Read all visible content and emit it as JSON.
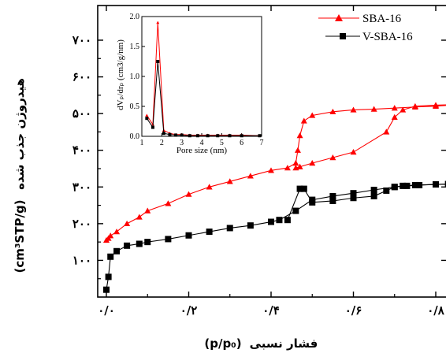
{
  "chart_data": {
    "type": "line",
    "xlabel_persian": "فشار نسبی",
    "xlabel_unit": "(p/p₀)",
    "ylabel_persian": "هیدروژن جذب شده",
    "ylabel_unit": "(cm³STP/g)",
    "xlim": [
      0.0,
      0.86
    ],
    "ylim": [
      0,
      780
    ],
    "x_ticks": [
      0.0,
      0.2,
      0.4,
      0.6,
      0.8
    ],
    "x_tick_labels": [
      "۰/۰",
      "۰/۲",
      "۰/۴",
      "۰/۶",
      "۰/۸"
    ],
    "y_ticks": [
      100,
      200,
      300,
      400,
      500,
      600,
      700
    ],
    "y_tick_labels": [
      "۱۰۰",
      "۲۰۰",
      "۳۰۰",
      "۴۰۰",
      "۵۰۰",
      "۶۰۰",
      "۷۰۰"
    ],
    "legend_position": "top-right",
    "series": [
      {
        "name": "SBA-16",
        "color": "#ff0000",
        "marker": "triangle",
        "adsorption": {
          "x": [
            0.0,
            0.005,
            0.01,
            0.025,
            0.05,
            0.08,
            0.1,
            0.15,
            0.2,
            0.25,
            0.3,
            0.35,
            0.4,
            0.44,
            0.46,
            0.465,
            0.47,
            0.48,
            0.5,
            0.55,
            0.6,
            0.65,
            0.7,
            0.75,
            0.8,
            0.86
          ],
          "y": [
            155,
            160,
            167,
            178,
            200,
            218,
            235,
            255,
            280,
            300,
            315,
            330,
            345,
            352,
            365,
            400,
            440,
            480,
            495,
            505,
            510,
            512,
            515,
            518,
            520,
            525
          ]
        },
        "desorption": {
          "x": [
            0.86,
            0.8,
            0.75,
            0.72,
            0.7,
            0.68,
            0.6,
            0.55,
            0.5,
            0.47,
            0.46
          ],
          "y": [
            525,
            523,
            520,
            510,
            490,
            450,
            395,
            380,
            365,
            355,
            352
          ]
        }
      },
      {
        "name": "V-SBA-16",
        "color": "#000000",
        "marker": "square",
        "adsorption": {
          "x": [
            0.0,
            0.005,
            0.01,
            0.025,
            0.05,
            0.08,
            0.1,
            0.15,
            0.2,
            0.25,
            0.3,
            0.35,
            0.4,
            0.42,
            0.46,
            0.5,
            0.55,
            0.6,
            0.65,
            0.7,
            0.73,
            0.76,
            0.8,
            0.83,
            0.86
          ],
          "y": [
            20,
            55,
            110,
            125,
            140,
            145,
            150,
            158,
            168,
            178,
            188,
            195,
            205,
            210,
            235,
            265,
            275,
            283,
            292,
            300,
            303,
            305,
            307,
            308,
            308
          ]
        },
        "desorption": {
          "x": [
            0.86,
            0.8,
            0.75,
            0.72,
            0.7,
            0.68,
            0.65,
            0.6,
            0.55,
            0.5,
            0.48,
            0.47,
            0.44
          ],
          "y": [
            308,
            307,
            305,
            303,
            300,
            290,
            275,
            270,
            262,
            258,
            295,
            295,
            210
          ]
        }
      }
    ],
    "inset": {
      "xlabel": "Pore size (nm)",
      "ylabel": "dVₚ/drₚ (cm3/g/nm)",
      "xlim": [
        1,
        7
      ],
      "ylim": [
        0,
        2.0
      ],
      "x_ticks": [
        1,
        2,
        3,
        4,
        5,
        6,
        7
      ],
      "y_ticks": [
        0.0,
        0.5,
        1.0,
        1.5,
        2.0
      ],
      "x_tick_labels": [
        "1",
        "2",
        "3",
        "4",
        "5",
        "6",
        "7"
      ],
      "y_tick_labels": [
        "0.0",
        "0.5",
        "1.0",
        "1.5",
        "2.0"
      ],
      "series": [
        {
          "name": "SBA-16",
          "color": "#ff0000",
          "marker": "triangle",
          "x": [
            1.25,
            1.55,
            1.8,
            2.1,
            2.4,
            2.7,
            3.0,
            3.4,
            3.8,
            4.3,
            4.8,
            5.4,
            6.0,
            6.9
          ],
          "y": [
            0.35,
            0.2,
            1.9,
            0.1,
            0.05,
            0.03,
            0.03,
            0.02,
            0.02,
            0.02,
            0.02,
            0.02,
            0.02,
            0.01
          ]
        },
        {
          "name": "V-SBA-16",
          "color": "#000000",
          "marker": "square",
          "x": [
            1.25,
            1.55,
            1.8,
            2.1,
            2.4,
            2.7,
            3.0,
            3.4,
            3.8,
            4.3,
            4.8,
            5.4,
            6.0,
            6.9
          ],
          "y": [
            0.3,
            0.15,
            1.25,
            0.05,
            0.03,
            0.02,
            0.02,
            0.01,
            0.01,
            0.01,
            0.01,
            0.01,
            0.01,
            0.01
          ]
        }
      ]
    }
  }
}
